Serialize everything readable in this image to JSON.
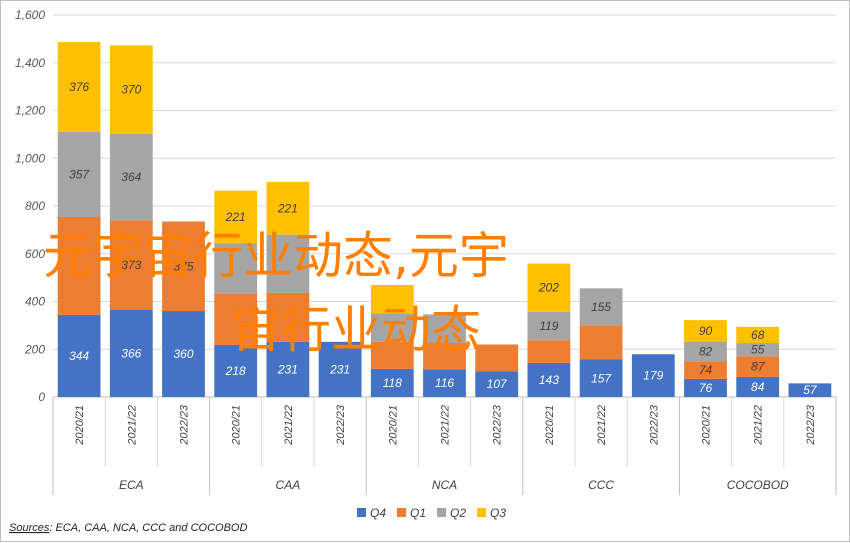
{
  "chart_data": {
    "type": "bar",
    "stacked": true,
    "ylim": [
      0,
      1600
    ],
    "yticks": [
      0,
      200,
      400,
      600,
      800,
      1000,
      1200,
      1400,
      1600
    ],
    "ytick_labels": [
      "0",
      "200",
      "400",
      "600",
      "800",
      "1,000",
      "1,200",
      "1,400",
      "1,600"
    ],
    "grid": true,
    "legend_position": "bottom",
    "groups": [
      {
        "name": "ECA",
        "periods": [
          "2020/21",
          "2021/22",
          "2022/23"
        ]
      },
      {
        "name": "CAA",
        "periods": [
          "2020/21",
          "2021/22",
          "2022/23"
        ]
      },
      {
        "name": "NCA",
        "periods": [
          "2020/21",
          "2021/22",
          "2022/23"
        ]
      },
      {
        "name": "CCC",
        "periods": [
          "2020/21",
          "2021/22",
          "2022/23"
        ]
      },
      {
        "name": "COCOBOD",
        "periods": [
          "2020/21",
          "2021/22",
          "2022/23"
        ]
      }
    ],
    "series": [
      {
        "name": "Q4",
        "color": "#4472c4",
        "label_color": "#ffffff",
        "values": [
          344,
          366,
          360,
          218,
          231,
          231,
          118,
          116,
          107,
          143,
          157,
          179,
          76,
          84,
          57
        ],
        "labels": [
          "344",
          "366",
          "360",
          "218",
          "231",
          "231",
          "118",
          "116",
          "107",
          "143",
          "157",
          "179",
          "76",
          "84",
          "57"
        ]
      },
      {
        "name": "Q1",
        "color": "#ed7d31",
        "label_color": "#404040",
        "values": [
          410,
          373,
          375,
          215,
          205,
          0,
          113,
          110,
          113,
          95,
          143,
          0,
          74,
          87,
          0
        ],
        "labels": [
          "",
          "373",
          "375",
          "",
          "",
          "",
          "",
          "",
          "",
          "",
          "",
          "",
          "74",
          "87",
          ""
        ]
      },
      {
        "name": "Q2",
        "color": "#a5a5a5",
        "label_color": "#404040",
        "values": [
          357,
          364,
          0,
          210,
          244,
          0,
          120,
          120,
          0,
          119,
          155,
          0,
          82,
          55,
          0
        ],
        "labels": [
          "357",
          "364",
          "",
          "",
          "",
          "",
          "",
          "",
          "",
          "119",
          "155",
          "",
          "82",
          "55",
          ""
        ]
      },
      {
        "name": "Q3",
        "color": "#ffc000",
        "label_color": "#404040",
        "values": [
          376,
          370,
          0,
          221,
          221,
          0,
          118,
          0,
          0,
          202,
          0,
          0,
          90,
          68,
          0
        ],
        "labels": [
          "376",
          "370",
          "",
          "221",
          "221",
          "",
          "",
          "",
          "",
          "202",
          "",
          "",
          "90",
          "68",
          ""
        ]
      }
    ],
    "source_label": "Sources",
    "source_text": ": ECA, CAA, NCA, CCC and COCOBOD"
  },
  "overlay": {
    "line1": "元宇宙行业动态,元宇",
    "line2": "宙行业动态"
  }
}
